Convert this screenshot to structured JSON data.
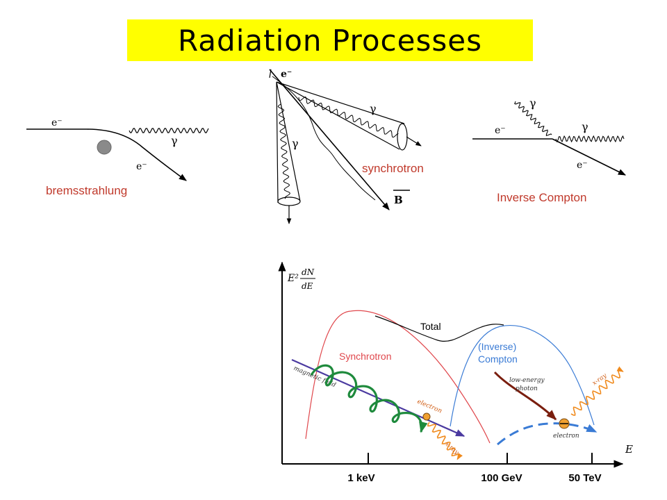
{
  "title": "Radiation Processes",
  "captions": {
    "bremsstrahlung": "bremsstrahlung",
    "synchrotron": "synchrotron",
    "inverse_compton": "Inverse Compton"
  },
  "diagram_labels": {
    "electron": "e⁻",
    "gamma": "γ",
    "field": "B"
  },
  "spectrum": {
    "y_axis": {
      "main": "E²",
      "numerator": "dN",
      "denominator": "dE"
    },
    "x_axis": "E",
    "ticks": [
      "1 keV",
      "100 GeV",
      "50 TeV"
    ],
    "total_label": "Total",
    "synchrotron_label": "Synchrotron",
    "ic_label_1": "(Inverse)",
    "ic_label_2": "Compton",
    "magnetic_field_label": "magnetic field",
    "electron_label": "electron",
    "xray_label": "x-ray",
    "low_energy_photon_1": "low-energy",
    "low_energy_photon_2": "photon",
    "colors": {
      "synchrotron": "#e0474c",
      "compton": "#3a7bd5",
      "total": "#000000",
      "field": "#4b3aa0",
      "helix": "#1e8a3c",
      "xray": "#f08a1c",
      "photon": "#7a1e0e",
      "electron_dot": "#f0a030"
    }
  },
  "colors": {
    "title_band": "#ffff00",
    "caption": "#c0392b"
  }
}
